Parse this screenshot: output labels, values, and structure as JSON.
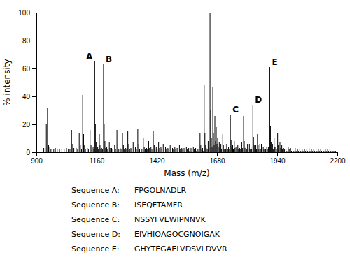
{
  "chart_data": {
    "type": "stem",
    "xlabel": "Mass (m/z)",
    "ylabel": "% intensity",
    "xlim": [
      900,
      2200
    ],
    "ylim": [
      0,
      100
    ],
    "xticks": [
      900,
      1160,
      1420,
      1680,
      1940,
      2200
    ],
    "yticks": [
      0,
      20,
      40,
      60,
      80,
      100
    ],
    "grid": false,
    "color": "#000000",
    "x": [
      932,
      938,
      943,
      948,
      953,
      958,
      963,
      975,
      982,
      990,
      1000,
      1010,
      1020,
      1030,
      1038,
      1045,
      1052,
      1057,
      1062,
      1072,
      1078,
      1085,
      1090,
      1095,
      1100,
      1104,
      1108,
      1112,
      1120,
      1125,
      1132,
      1136,
      1140,
      1145,
      1148,
      1152,
      1155,
      1158,
      1161,
      1165,
      1168,
      1172,
      1175,
      1178,
      1182,
      1186,
      1190,
      1193,
      1196,
      1199,
      1204,
      1208,
      1215,
      1218,
      1225,
      1230,
      1238,
      1242,
      1248,
      1252,
      1256,
      1262,
      1266,
      1272,
      1276,
      1280,
      1286,
      1290,
      1295,
      1299,
      1303,
      1308,
      1312,
      1318,
      1322,
      1328,
      1332,
      1338,
      1342,
      1346,
      1352,
      1356,
      1362,
      1366,
      1370,
      1376,
      1380,
      1385,
      1389,
      1395,
      1399,
      1405,
      1409,
      1413,
      1418,
      1422,
      1428,
      1432,
      1438,
      1442,
      1448,
      1452,
      1458,
      1462,
      1468,
      1472,
      1478,
      1482,
      1488,
      1492,
      1498,
      1502,
      1508,
      1512,
      1518,
      1522,
      1528,
      1532,
      1538,
      1542,
      1548,
      1552,
      1558,
      1562,
      1568,
      1572,
      1578,
      1582,
      1588,
      1592,
      1598,
      1602,
      1607,
      1610,
      1614,
      1618,
      1622,
      1625,
      1628,
      1631,
      1634,
      1638,
      1642,
      1646,
      1650,
      1653,
      1656,
      1659,
      1662,
      1665,
      1668,
      1671,
      1674,
      1677,
      1680,
      1683,
      1686,
      1690,
      1693,
      1697,
      1700,
      1705,
      1708,
      1711,
      1715,
      1718,
      1722,
      1726,
      1730,
      1734,
      1738,
      1741,
      1744,
      1748,
      1751,
      1755,
      1758,
      1762,
      1766,
      1770,
      1773,
      1778,
      1782,
      1787,
      1790,
      1795,
      1798,
      1801,
      1805,
      1808,
      1812,
      1815,
      1820,
      1823,
      1827,
      1830,
      1835,
      1838,
      1841,
      1844,
      1848,
      1851,
      1855,
      1858,
      1861,
      1865,
      1868,
      1872,
      1875,
      1880,
      1883,
      1887,
      1890,
      1895,
      1898,
      1902,
      1905,
      1908,
      1911,
      1914,
      1917,
      1920,
      1923,
      1927,
      1930,
      1934,
      1937,
      1942,
      1945,
      1948,
      1952,
      1955,
      1960,
      1963,
      1968,
      1972,
      1978,
      1982,
      1988,
      1992,
      1998,
      2002,
      2008,
      2012,
      2018,
      2022,
      2028,
      2032,
      2038,
      2042,
      2048,
      2052,
      2058,
      2062,
      2068,
      2072,
      2078,
      2082,
      2088,
      2092,
      2098,
      2102,
      2108,
      2112,
      2118,
      2122,
      2128,
      2132,
      2138,
      2142,
      2148,
      2152,
      2158,
      2162,
      2168,
      2172,
      2178,
      2182,
      2188,
      2192
    ],
    "values": [
      3,
      3,
      20,
      32,
      5,
      4,
      2,
      2,
      3,
      2,
      2,
      2,
      2,
      3,
      2,
      2,
      16,
      6,
      3,
      3,
      2,
      14,
      5,
      2,
      41,
      13,
      5,
      2,
      3,
      2,
      16,
      5,
      2,
      4,
      2,
      65,
      20,
      7,
      3,
      4,
      2,
      13,
      5,
      2,
      3,
      2,
      63,
      20,
      8,
      3,
      4,
      2,
      7,
      3,
      3,
      2,
      5,
      2,
      16,
      6,
      2,
      3,
      2,
      14,
      5,
      2,
      3,
      2,
      15,
      6,
      2,
      3,
      2,
      7,
      3,
      4,
      2,
      17,
      6,
      2,
      3,
      2,
      10,
      4,
      2,
      3,
      2,
      8,
      3,
      4,
      2,
      15,
      5,
      2,
      4,
      2,
      7,
      3,
      4,
      2,
      6,
      2,
      4,
      2,
      3,
      2,
      5,
      2,
      3,
      2,
      4,
      2,
      3,
      2,
      5,
      2,
      3,
      2,
      3,
      1,
      4,
      2,
      3,
      1,
      3,
      1,
      4,
      2,
      3,
      1,
      2,
      1,
      14,
      5,
      2,
      3,
      1,
      48,
      14,
      5,
      3,
      2,
      8,
      3,
      100,
      30,
      10,
      4,
      47,
      14,
      5,
      26,
      8,
      18,
      6,
      10,
      4,
      7,
      3,
      6,
      2,
      13,
      5,
      2,
      6,
      2,
      6,
      2,
      4,
      2,
      27,
      9,
      4,
      5,
      2,
      8,
      3,
      4,
      2,
      5,
      2,
      3,
      2,
      7,
      3,
      26,
      8,
      3,
      4,
      2,
      6,
      2,
      6,
      2,
      4,
      2,
      34,
      11,
      5,
      2,
      5,
      2,
      13,
      5,
      2,
      6,
      2,
      6,
      2,
      4,
      2,
      5,
      2,
      4,
      2,
      4,
      2,
      61,
      19,
      7,
      3,
      6,
      2,
      10,
      4,
      4,
      2,
      14,
      5,
      2,
      7,
      3,
      5,
      2,
      3,
      2,
      3,
      1,
      4,
      2,
      3,
      1,
      2,
      1,
      3,
      1,
      2,
      1,
      3,
      1,
      2,
      1,
      2,
      1,
      2,
      1,
      3,
      1,
      2,
      1,
      2,
      1,
      2,
      1,
      2,
      1,
      2,
      1,
      3,
      1,
      2,
      1,
      2,
      1,
      2,
      1,
      1,
      1,
      1,
      1
    ],
    "annotations": [
      {
        "text": "A",
        "x": 1152,
        "y": 65
      },
      {
        "text": "B",
        "x": 1190,
        "y": 63
      },
      {
        "text": "C",
        "x": 1738,
        "y": 27
      },
      {
        "text": "D",
        "x": 1835,
        "y": 34
      },
      {
        "text": "E",
        "x": 1908,
        "y": 61
      }
    ],
    "table": [
      [
        "Sequence A:",
        "FPGQLNADLR"
      ],
      [
        "Sequence B:",
        "ISEQFTAMFR"
      ],
      [
        "Sequence C:",
        "NSSYFVEWIPNNVK"
      ],
      [
        "Sequence D:",
        "EIVHIQAGQCGNQIGAK"
      ],
      [
        "Sequence E:",
        "GHYTEGAELVDSVLDVVR"
      ]
    ]
  }
}
